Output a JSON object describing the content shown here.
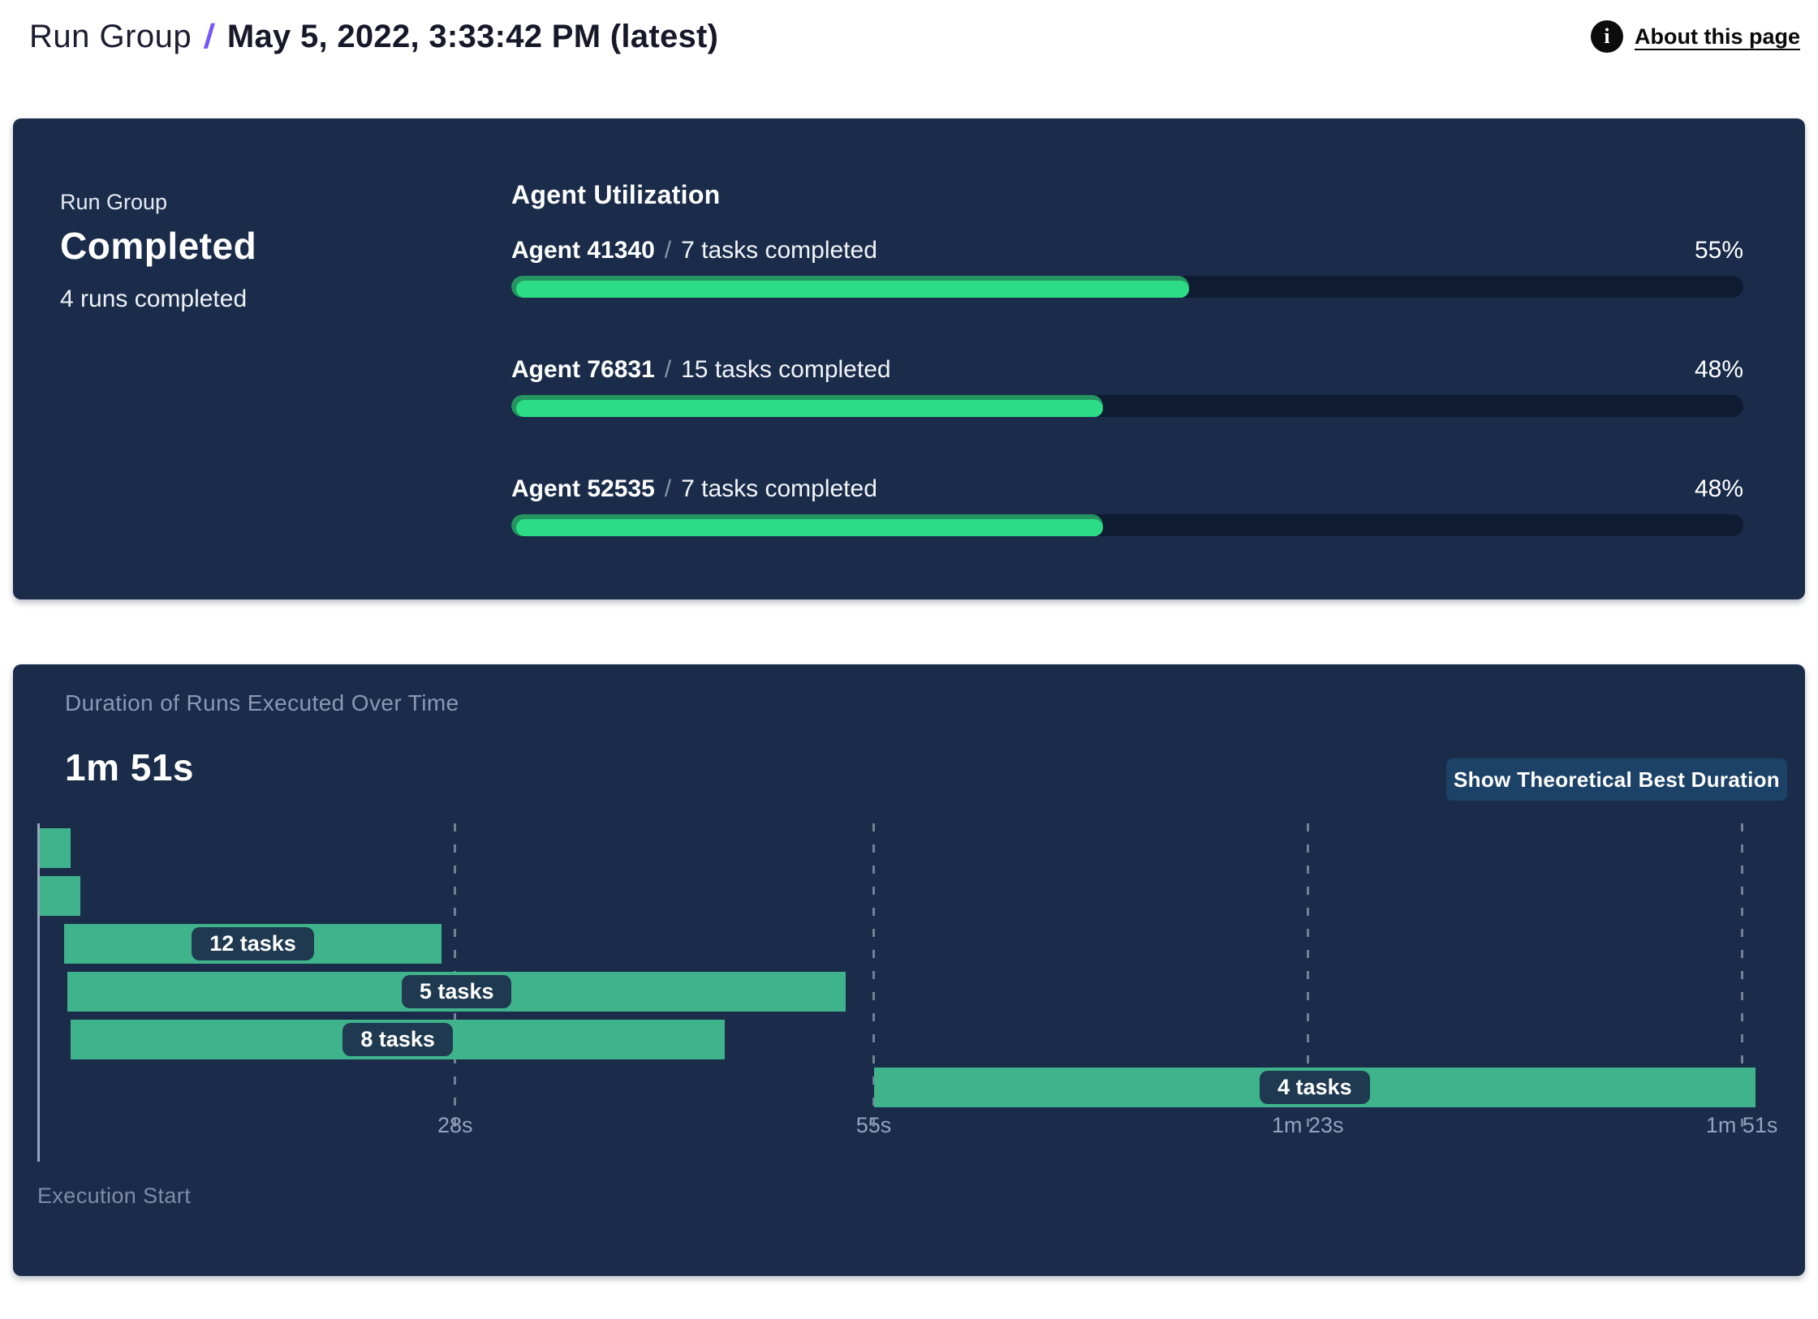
{
  "header": {
    "breadcrumb_root": "Run Group",
    "separator": "/",
    "title": "May 5, 2022, 3:33:42 PM (latest)",
    "about_link": "About this page",
    "info_icon": "info-icon"
  },
  "colors": {
    "accent_purple": "#7856f5",
    "panel_navy": "#1a2c4a",
    "track_navy": "#0e1b30",
    "progress_green": "#2ddd86",
    "progress_green_dark": "#249461",
    "gantt_teal": "#3fb38b",
    "pill_navy": "#1e3950",
    "button_blue": "#1d4267"
  },
  "utilization_panel": {
    "group_label": "Run Group",
    "status": "Completed",
    "runs_summary": "4 runs completed",
    "section_title": "Agent Utilization",
    "separator": "/",
    "agents": [
      {
        "name": "Agent 41340",
        "tasks_completed": "7 tasks completed",
        "utilization_pct": 55,
        "pct_label": "55%"
      },
      {
        "name": "Agent 76831",
        "tasks_completed": "15 tasks completed",
        "utilization_pct": 48,
        "pct_label": "48%"
      },
      {
        "name": "Agent 52535",
        "tasks_completed": "7 tasks completed",
        "utilization_pct": 48,
        "pct_label": "48%"
      }
    ]
  },
  "duration_panel": {
    "title": "Duration of Runs Executed Over Time",
    "total_duration": "1m 51s",
    "button_label": "Show Theoretical Best Duration",
    "axis_label": "Execution Start"
  },
  "chart_data": {
    "type": "gantt",
    "title": "Duration of Runs Executed Over Time",
    "total_duration_label": "1m 51s",
    "x_unit": "seconds",
    "x_range": [
      0,
      115
    ],
    "grid": "dashed-vertical",
    "time_axis": {
      "ticks": [
        {
          "t": 28,
          "label": "28s"
        },
        {
          "t": 55,
          "label": "55s"
        },
        {
          "t": 83,
          "label": "1m 23s"
        },
        {
          "t": 111,
          "label": "1m 51s"
        }
      ]
    },
    "bars": [
      {
        "run": 1,
        "start_s": 1.2,
        "end_s": 3.2,
        "label": null
      },
      {
        "run": 2,
        "start_s": 1.2,
        "end_s": 3.8,
        "label": null
      },
      {
        "run": 3,
        "start_s": 2.8,
        "end_s": 27.1,
        "label": "12 tasks"
      },
      {
        "run": 4,
        "start_s": 3.0,
        "end_s": 53.2,
        "label": "5 tasks"
      },
      {
        "run": 5,
        "start_s": 3.2,
        "end_s": 45.4,
        "label": "8 tasks"
      },
      {
        "run": 6,
        "start_s": 55.0,
        "end_s": 111.9,
        "label": "4 tasks"
      }
    ]
  }
}
